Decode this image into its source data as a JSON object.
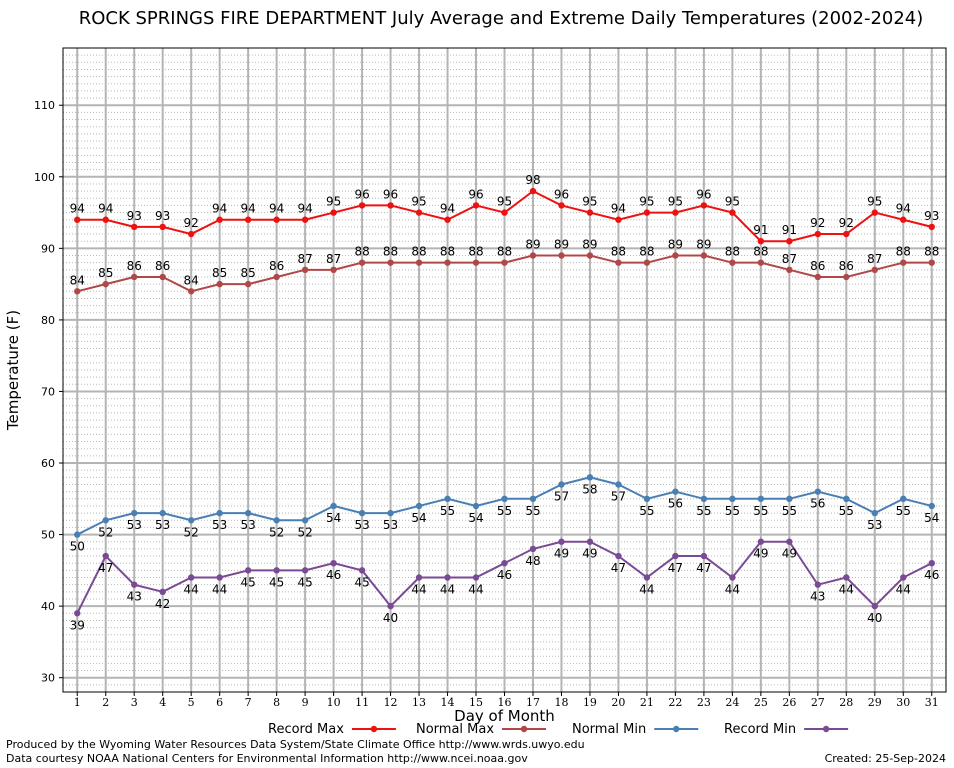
{
  "title": "ROCK SPRINGS FIRE DEPARTMENT July Average and Extreme Daily Temperatures (2002-2024)",
  "footer": {
    "produced_by": "Produced by the Wyoming Water Resources Data System/State Climate Office http://www.wrds.uwyo.edu",
    "courtesy": "Data courtesy NOAA National Centers for Environmental Information http://www.ncei.noaa.gov",
    "created": "Created:  25-Sep-2024"
  },
  "chart_data": {
    "type": "line",
    "title": "ROCK SPRINGS FIRE DEPARTMENT July Average and Extreme Daily Temperatures (2002-2024)",
    "xlabel": "Day of Month",
    "ylabel": "Temperature (F)",
    "ylim": [
      28,
      118
    ],
    "yticks": [
      30,
      40,
      50,
      60,
      70,
      80,
      90,
      100,
      110
    ],
    "grid": true,
    "legend_position": "bottom",
    "x": [
      1,
      2,
      3,
      4,
      5,
      6,
      7,
      8,
      9,
      10,
      11,
      12,
      13,
      14,
      15,
      16,
      17,
      18,
      19,
      20,
      21,
      22,
      23,
      24,
      25,
      26,
      27,
      28,
      29,
      30,
      31
    ],
    "series": [
      {
        "name": "Record Max",
        "color": "#ee1111",
        "label_position": "above",
        "values": [
          94,
          94,
          93,
          93,
          92,
          94,
          94,
          94,
          94,
          95,
          96,
          96,
          95,
          94,
          96,
          95,
          98,
          96,
          95,
          94,
          95,
          95,
          96,
          95,
          91,
          91,
          92,
          92,
          95,
          94,
          93
        ]
      },
      {
        "name": "Normal Max",
        "color": "#b14848",
        "label_position": "above",
        "values": [
          84,
          85,
          86,
          86,
          84,
          85,
          85,
          86,
          87,
          87,
          88,
          88,
          88,
          88,
          88,
          88,
          89,
          89,
          89,
          88,
          88,
          89,
          89,
          88,
          88,
          87,
          86,
          86,
          87,
          88,
          88
        ]
      },
      {
        "name": "Normal Min",
        "color": "#4a7fb4",
        "label_position": "below",
        "values": [
          50,
          52,
          53,
          53,
          52,
          53,
          53,
          52,
          52,
          54,
          53,
          53,
          54,
          55,
          54,
          55,
          55,
          57,
          58,
          57,
          55,
          56,
          55,
          55,
          55,
          55,
          56,
          55,
          53,
          55,
          54
        ]
      },
      {
        "name": "Record Min",
        "color": "#7a4a94",
        "label_position": "below",
        "values": [
          39,
          47,
          43,
          42,
          44,
          44,
          45,
          45,
          45,
          46,
          45,
          40,
          44,
          44,
          44,
          46,
          48,
          49,
          49,
          47,
          44,
          47,
          47,
          44,
          49,
          49,
          43,
          44,
          40,
          44,
          46
        ]
      }
    ]
  }
}
